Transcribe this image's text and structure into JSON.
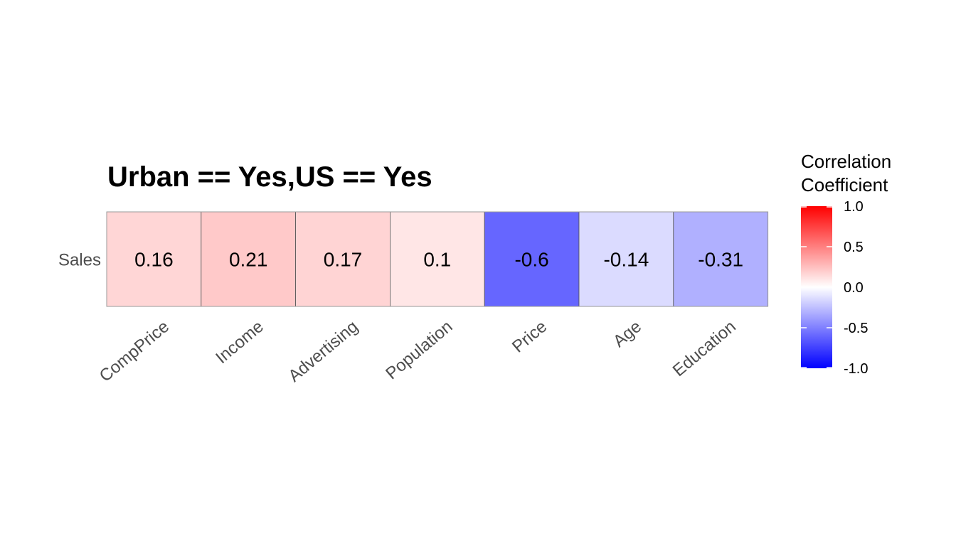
{
  "chart_data": {
    "type": "heatmap",
    "title": "Urban == Yes,US == Yes",
    "rows": [
      "Sales"
    ],
    "columns": [
      "CompPrice",
      "Income",
      "Advertising",
      "Population",
      "Price",
      "Age",
      "Education"
    ],
    "values": [
      [
        0.16,
        0.21,
        0.17,
        0.1,
        -0.6,
        -0.14,
        -0.31
      ]
    ],
    "value_labels": [
      "0.16",
      "0.21",
      "0.17",
      "0.1",
      "-0.6",
      "-0.14",
      "-0.31"
    ],
    "color_scale": {
      "low": "#0000ff",
      "mid": "#ffffff",
      "high": "#ff0000",
      "limits": [
        -1.0,
        1.0
      ]
    },
    "legend": {
      "title_lines": [
        "Correlation",
        "Coefficient"
      ],
      "ticks": [
        1.0,
        0.5,
        0.0,
        -0.5,
        -1.0
      ],
      "tick_labels": [
        "1.0",
        "0.5",
        "0.0",
        "-0.5",
        "-1.0"
      ],
      "placement": "right"
    }
  }
}
